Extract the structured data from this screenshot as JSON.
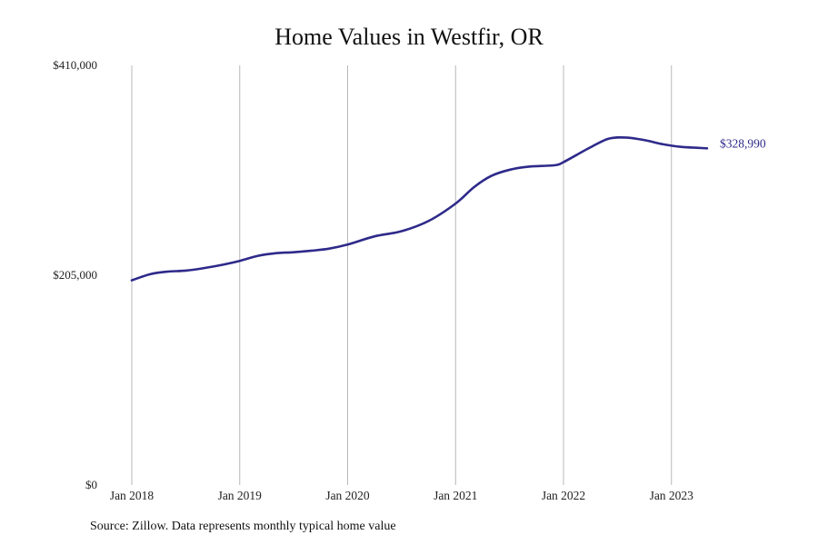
{
  "chart_data": {
    "type": "line",
    "title": "Home Values in Westfir, OR",
    "xlabel": "",
    "ylabel": "",
    "ylim": [
      0,
      410000
    ],
    "y_ticks": [
      {
        "value": 0,
        "label": "$0"
      },
      {
        "value": 205000,
        "label": "$205,000"
      },
      {
        "value": 410000,
        "label": "$410,000"
      }
    ],
    "x_ticks": [
      {
        "value": 2018.0,
        "label": "Jan 2018"
      },
      {
        "value": 2019.0,
        "label": "Jan 2019"
      },
      {
        "value": 2020.0,
        "label": "Jan 2020"
      },
      {
        "value": 2021.0,
        "label": "Jan 2021"
      },
      {
        "value": 2022.0,
        "label": "Jan 2022"
      },
      {
        "value": 2023.0,
        "label": "Jan 2023"
      }
    ],
    "xlim": [
      2018.0,
      2023.92
    ],
    "grid": {
      "vertical": true,
      "horizontal": false
    },
    "line_color": "#2e2a8a",
    "series": [
      {
        "points": [
          [
            2018.0,
            200000
          ],
          [
            2018.17,
            206000
          ],
          [
            2018.33,
            208500
          ],
          [
            2018.5,
            209500
          ],
          [
            2018.67,
            212000
          ],
          [
            2018.83,
            215000
          ],
          [
            2019.0,
            219000
          ],
          [
            2019.17,
            224000
          ],
          [
            2019.33,
            226500
          ],
          [
            2019.5,
            227500
          ],
          [
            2019.67,
            229000
          ],
          [
            2019.83,
            231000
          ],
          [
            2020.0,
            235000
          ],
          [
            2020.25,
            243000
          ],
          [
            2020.5,
            248000
          ],
          [
            2020.75,
            258000
          ],
          [
            2021.0,
            275000
          ],
          [
            2021.17,
            291000
          ],
          [
            2021.33,
            302000
          ],
          [
            2021.5,
            308000
          ],
          [
            2021.67,
            311000
          ],
          [
            2021.92,
            312500
          ],
          [
            2022.0,
            315500
          ],
          [
            2022.25,
            330000
          ],
          [
            2022.42,
            338500
          ],
          [
            2022.58,
            339500
          ],
          [
            2022.75,
            337000
          ],
          [
            2022.92,
            333000
          ],
          [
            2023.08,
            330500
          ],
          [
            2023.33,
            328990
          ]
        ]
      }
    ],
    "end_label": "$328,990",
    "source": "Source: Zillow. Data represents monthly typical home value"
  }
}
